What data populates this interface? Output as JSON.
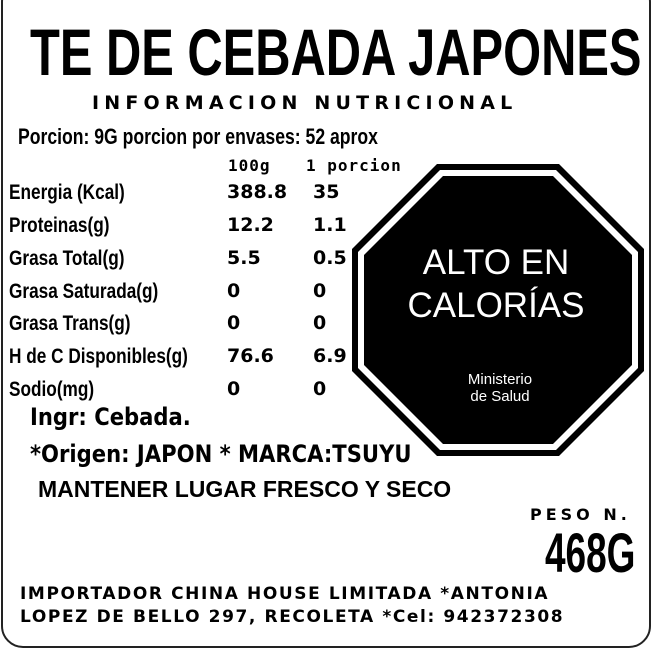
{
  "title": "TE DE CEBADA JAPONES",
  "subtitle": "INFORMACION NUTRICIONAL",
  "portion": "Porcion: 9G  porcion por envases: 52 aprox",
  "columns": {
    "per100": "100g",
    "perPortion": "1 porcion"
  },
  "rows": [
    {
      "name": "Energia (Kcal)",
      "per100": "388.8",
      "perPortion": "35"
    },
    {
      "name": "Proteinas(g)",
      "per100": "12.2",
      "perPortion": "1.1"
    },
    {
      "name": "Grasa Total(g)",
      "per100": "5.5",
      "perPortion": "0.5"
    },
    {
      "name": "Grasa Saturada(g)",
      "per100": "0",
      "perPortion": "0"
    },
    {
      "name": "Grasa Trans(g)",
      "per100": "0",
      "perPortion": "0"
    },
    {
      "name": "H de C Disponibles(g)",
      "per100": "76.6",
      "perPortion": "6.9"
    },
    {
      "name": "Sodio(mg)",
      "per100": "0",
      "perPortion": "0"
    }
  ],
  "ingredients": "Ingr: Cebada.",
  "origin": "*Origen: JAPON  * MARCA:TSUYU",
  "storage": "MANTENER LUGAR FRESCO Y SECO",
  "weight": {
    "label": "PESO N.",
    "value": "468G"
  },
  "address": {
    "line1": "IMPORTADOR CHINA HOUSE LIMITADA *ANTONIA",
    "line2": "LOPEZ DE BELLO 297, RECOLETA *Cel: 942372308"
  },
  "seal": {
    "line1": "ALTO EN",
    "line2": "CALORÍAS",
    "authority1": "Ministerio",
    "authority2": "de Salud",
    "color": "#000000"
  }
}
